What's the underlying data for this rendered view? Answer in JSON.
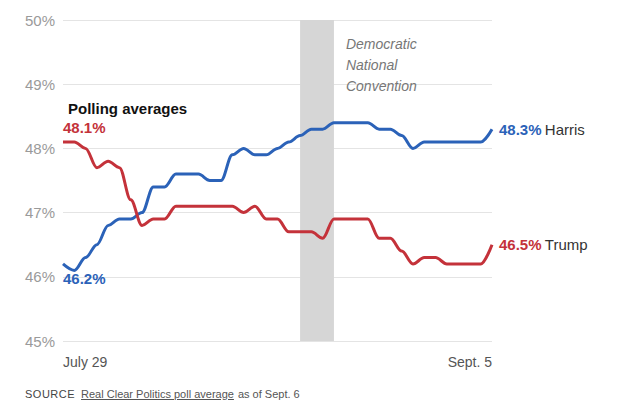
{
  "chart_data": {
    "type": "line",
    "title": "Polling averages",
    "categories": [
      "July 29",
      null,
      null,
      null,
      null,
      null,
      null,
      null,
      null,
      null,
      null,
      null,
      null,
      null,
      null,
      null,
      null,
      null,
      null,
      null,
      null,
      null,
      null,
      null,
      null,
      null,
      null,
      null,
      null,
      null,
      null,
      null,
      null,
      null,
      null,
      null,
      null,
      null,
      "Sept. 5"
    ],
    "series": [
      {
        "name": "Harris",
        "color": "#2b62b8",
        "values": [
          46.2,
          46.1,
          46.3,
          46.5,
          46.8,
          46.9,
          46.9,
          47.0,
          47.4,
          47.4,
          47.6,
          47.6,
          47.6,
          47.5,
          47.5,
          47.9,
          48.0,
          47.9,
          47.9,
          48.0,
          48.1,
          48.2,
          48.3,
          48.3,
          48.4,
          48.4,
          48.4,
          48.4,
          48.3,
          48.3,
          48.2,
          48.0,
          48.1,
          48.1,
          48.1,
          48.1,
          48.1,
          48.1,
          48.3
        ],
        "value_labels": [
          "46.2%",
          null,
          null,
          null,
          null,
          null,
          null,
          null,
          null,
          null,
          null,
          null,
          null,
          null,
          null,
          null,
          null,
          null,
          null,
          null,
          null,
          null,
          null,
          null,
          null,
          null,
          null,
          null,
          null,
          null,
          null,
          null,
          null,
          null,
          null,
          null,
          null,
          null,
          "48.3%"
        ]
      },
      {
        "name": "Trump",
        "color": "#c4323a",
        "values": [
          48.1,
          48.1,
          48.0,
          47.7,
          47.8,
          47.7,
          47.2,
          46.8,
          46.9,
          46.9,
          47.1,
          47.1,
          47.1,
          47.1,
          47.1,
          47.1,
          47.0,
          47.1,
          46.9,
          46.9,
          46.7,
          46.7,
          46.7,
          46.6,
          46.9,
          46.9,
          46.9,
          46.9,
          46.6,
          46.6,
          46.4,
          46.2,
          46.3,
          46.3,
          46.2,
          46.2,
          46.2,
          46.2,
          46.5
        ],
        "value_labels": [
          "48.1%",
          null,
          null,
          null,
          null,
          null,
          null,
          null,
          null,
          null,
          null,
          null,
          null,
          null,
          null,
          null,
          null,
          null,
          null,
          null,
          null,
          null,
          null,
          null,
          null,
          null,
          null,
          null,
          null,
          null,
          null,
          null,
          null,
          null,
          null,
          null,
          null,
          null,
          "46.5%"
        ]
      }
    ],
    "ylim": [
      45,
      50
    ],
    "yticks": [
      {
        "value": 45,
        "label": "45%"
      },
      {
        "value": 46,
        "label": "46%"
      },
      {
        "value": 47,
        "label": "47%"
      },
      {
        "value": 48,
        "label": "48%"
      },
      {
        "value": 49,
        "label": "49%"
      },
      {
        "value": 50,
        "label": "50%"
      }
    ],
    "grid": true,
    "data_labels": true,
    "shaded_span": {
      "label": "Democratic National Convention",
      "x_start": 21,
      "x_end": 24
    },
    "source": {
      "label": "SOURCE",
      "link": "Real Clear Politics poll average",
      "note": "as of Sept. 6"
    }
  }
}
